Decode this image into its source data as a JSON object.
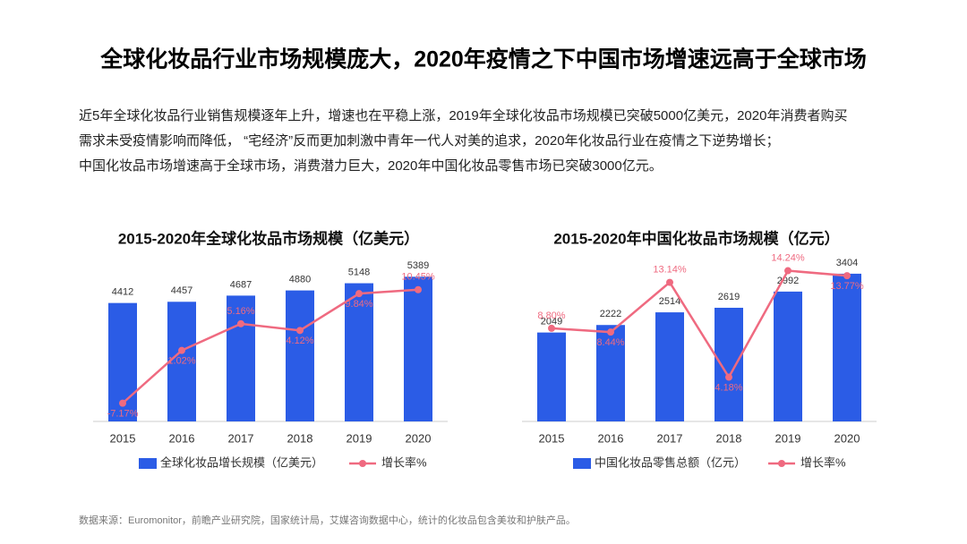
{
  "title": "全球化妆品行业市场规模庞大，2020年疫情之下中国市场增速远高于全球市场",
  "paragraphs": [
    "近5年全球化妆品行业销售规模逐年上升，增速也在平稳上涨，2019年全球化妆品市场规模已突破5000亿美元，2020年消费者购买",
    "需求未受疫情影响而降低，  “宅经济”反而更加刺激中青年一代人对美的追求，2020年化妆品行业在疫情之下逆势增长；",
    "中国化妆品市场增速高于全球市场，消费潜力巨大，2020年中国化妆品零售市场已突破3000亿元。"
  ],
  "source": "数据来源：Euromonitor，前瞻产业研究院，国家统计局，艾媒咨询数据中心，统计的化妆品包含美妆和护肤产品。",
  "chart_data": [
    {
      "type": "bar_line",
      "title": "2015-2020年全球化妆品市场规模（亿美元）",
      "categories": [
        "2015",
        "2016",
        "2017",
        "2018",
        "2019",
        "2020"
      ],
      "series": [
        {
          "name": "全球化妆品增长规模（亿美元）",
          "color": "#2b5ce6",
          "values": [
            4412,
            4457,
            4687,
            4880,
            5148,
            5389
          ]
        },
        {
          "name": "增长率%",
          "color": "#ef6a80",
          "axis": "y2",
          "values": [
            -7.17,
            1.02,
            5.16,
            4.12,
            9.84,
            10.45
          ],
          "value_labels": [
            "-7.17%",
            "1.02%",
            "5.16%",
            "4.12%",
            "9.84%",
            "10.45%"
          ]
        }
      ],
      "ylim": [
        0,
        6000
      ],
      "y2lim": [
        -10,
        15
      ],
      "legend": "bottom"
    },
    {
      "type": "bar_line",
      "title": "2015-2020年中国化妆品市场规模（亿元）",
      "categories": [
        "2015",
        "2016",
        "2017",
        "2018",
        "2019",
        "2020"
      ],
      "series": [
        {
          "name": "中国化妆品零售总额（亿元）",
          "color": "#2b5ce6",
          "values": [
            2049,
            2222,
            2514,
            2619,
            2992,
            3404
          ]
        },
        {
          "name": "增长率%",
          "color": "#ef6a80",
          "axis": "y2",
          "values": [
            8.8,
            8.44,
            13.14,
            4.18,
            14.24,
            13.77
          ],
          "value_labels": [
            "8.80%",
            "8.44%",
            "13.14%",
            "4.18%",
            "14.24%",
            "13.77%"
          ]
        }
      ],
      "ylim": [
        0,
        4000
      ],
      "y2lim": [
        0,
        16.4
      ],
      "legend": "bottom"
    }
  ]
}
